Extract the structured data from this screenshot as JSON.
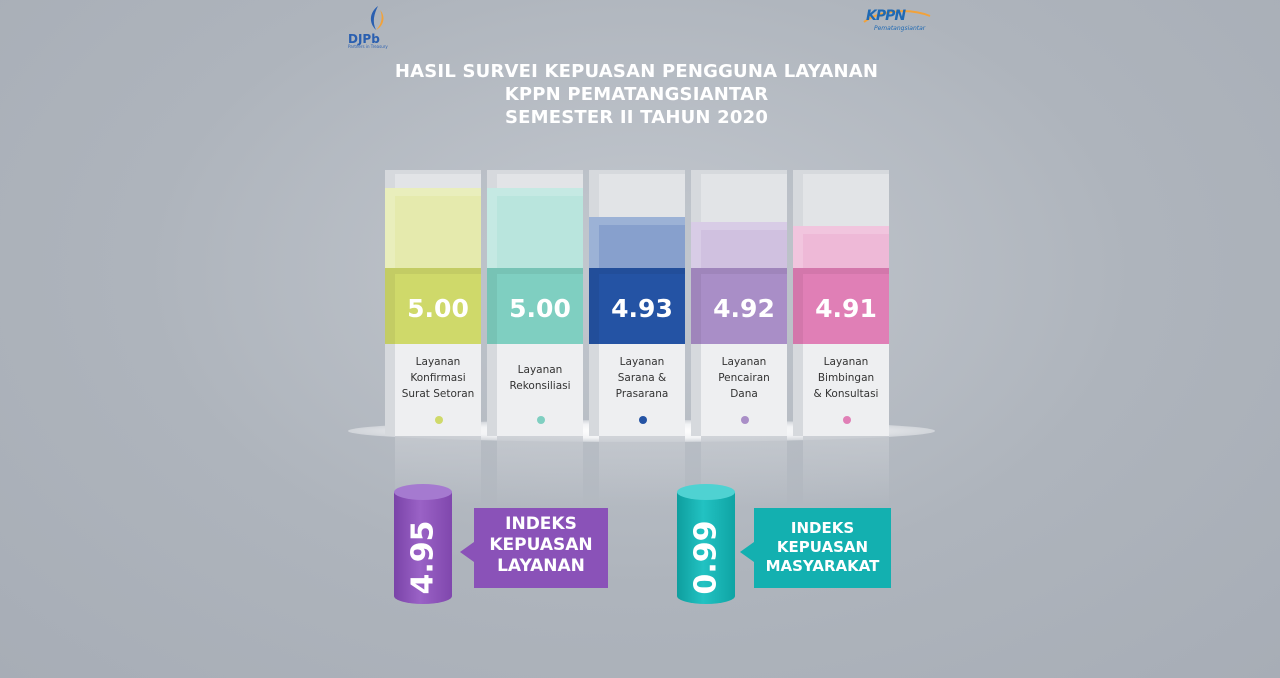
{
  "logos": {
    "left_text": "DJPb",
    "left_sub": "Partners in Treasury",
    "right_text": "KPPN",
    "right_sub": "Pematangsiantar"
  },
  "title_lines": [
    "HASIL SURVEI KEPUASAN PENGGUNA LAYANAN",
    "KPPN PEMATANGSIANTAR",
    "SEMESTER II TAHUN 2020"
  ],
  "colors": {
    "konfirmasi": "#cfd96a",
    "rekonsiliasi": "#7fcfc1",
    "sarana": "#2453a4",
    "pencairan": "#a98ec7",
    "bimbingan": "#e07fb6",
    "ikl": "#8a52b8",
    "ikm": "#13b0b0"
  },
  "chart_data": {
    "type": "bar",
    "categories": [
      [
        "Layanan",
        "Konfirmasi",
        "Surat Setoran"
      ],
      [
        "Layanan",
        "Rekonsiliasi"
      ],
      [
        "Layanan",
        "Sarana &",
        "Prasarana"
      ],
      [
        "Layanan",
        "Pencairan",
        "Dana"
      ],
      [
        "Layanan",
        "Bimbingan",
        "& Konsultasi"
      ]
    ],
    "values": [
      5.0,
      5.0,
      4.93,
      4.92,
      4.91
    ],
    "value_labels": [
      "5.00",
      "5.00",
      "4.93",
      "4.92",
      "4.91"
    ]
  },
  "indices": [
    {
      "value": "4.95",
      "label_lines": [
        "INDEKS",
        "KEPUASAN",
        "LAYANAN"
      ]
    },
    {
      "value": "0.99",
      "label_lines": [
        "INDEKS",
        "KEPUASAN",
        "MASYARAKAT"
      ]
    }
  ]
}
